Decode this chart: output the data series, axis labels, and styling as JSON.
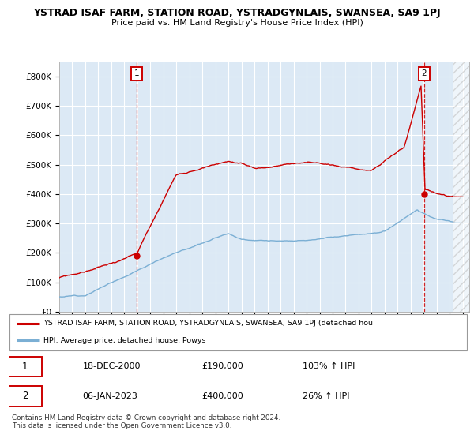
{
  "title": "YSTRAD ISAF FARM, STATION ROAD, YSTRADGYNLAIS, SWANSEA, SA9 1PJ",
  "subtitle": "Price paid vs. HM Land Registry's House Price Index (HPI)",
  "x_start_year": 1995,
  "x_end_year": 2026,
  "ylim": [
    0,
    850000
  ],
  "yticks": [
    0,
    100000,
    200000,
    300000,
    400000,
    500000,
    600000,
    700000,
    800000
  ],
  "ytick_labels": [
    "£0",
    "£100K",
    "£200K",
    "£300K",
    "£400K",
    "£500K",
    "£600K",
    "£700K",
    "£800K"
  ],
  "property_color": "#cc0000",
  "hpi_color": "#7bafd4",
  "bg_color": "#dce9f5",
  "grid_color": "#ffffff",
  "transaction1_x": 2000.96,
  "transaction1_price": 190000,
  "transaction2_x": 2023.02,
  "transaction2_price": 400000,
  "legend_line1": "YSTRAD ISAF FARM, STATION ROAD, YSTRADGYNLAIS, SWANSEA, SA9 1PJ (detached hou",
  "legend_line2": "HPI: Average price, detached house, Powys",
  "table_row1_num": "1",
  "table_row1_date": "18-DEC-2000",
  "table_row1_price": "£190,000",
  "table_row1_hpi": "103% ↑ HPI",
  "table_row2_num": "2",
  "table_row2_date": "06-JAN-2023",
  "table_row2_price": "£400,000",
  "table_row2_hpi": "26% ↑ HPI",
  "footer": "Contains HM Land Registry data © Crown copyright and database right 2024.\nThis data is licensed under the Open Government Licence v3.0."
}
